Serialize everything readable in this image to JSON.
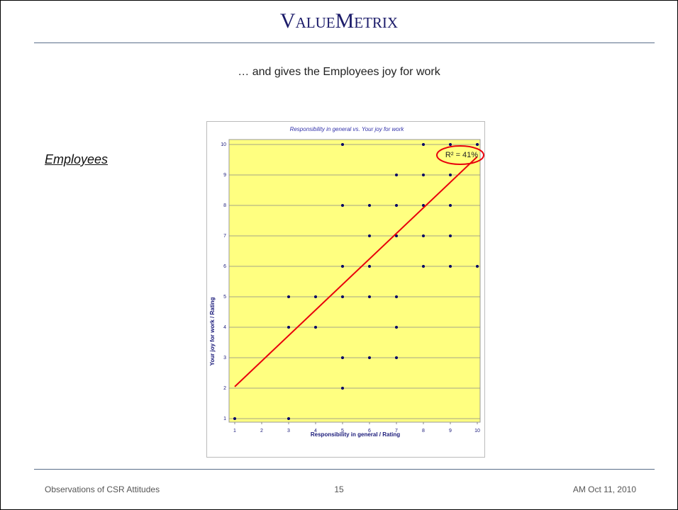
{
  "header": {
    "logo": "ValueMetrix",
    "subtitle": "… and gives the Employees joy for work"
  },
  "side_label": "Employees",
  "footer": {
    "left": "Observations of CSR Attitudes",
    "center": "15",
    "right": "AM Oct 11, 2010"
  },
  "chart_data": {
    "type": "scatter",
    "title": "Responsibility in general vs. Your joy for work",
    "x_label": "Responsibility in general / Rating",
    "y_label": "Your joy for work / Rating",
    "x": [
      1,
      3,
      3,
      3,
      4,
      4,
      5,
      5,
      5,
      5,
      5,
      5,
      6,
      6,
      6,
      6,
      6,
      7,
      7,
      7,
      7,
      7,
      7,
      8,
      8,
      8,
      8,
      8,
      9,
      9,
      9,
      9,
      9,
      10,
      10
    ],
    "y": [
      1,
      1,
      4,
      5,
      4,
      5,
      2,
      3,
      5,
      6,
      8,
      10,
      3,
      5,
      6,
      7,
      8,
      3,
      4,
      5,
      7,
      8,
      9,
      6,
      7,
      8,
      9,
      10,
      6,
      7,
      8,
      9,
      10,
      6,
      10
    ],
    "color": "#000066",
    "trendline": {
      "x": [
        1,
        10
      ],
      "y": [
        2.05,
        9.6
      ],
      "color": "#e8000b"
    },
    "annotation": "R² = 41%",
    "xlim": [
      1,
      10
    ],
    "ylim": [
      1,
      10
    ],
    "xticks": [
      1,
      2,
      3,
      4,
      5,
      6,
      7,
      8,
      9,
      10
    ],
    "yticks": [
      1,
      2,
      3,
      4,
      5,
      6,
      7,
      8,
      9,
      10
    ],
    "grid": true
  }
}
